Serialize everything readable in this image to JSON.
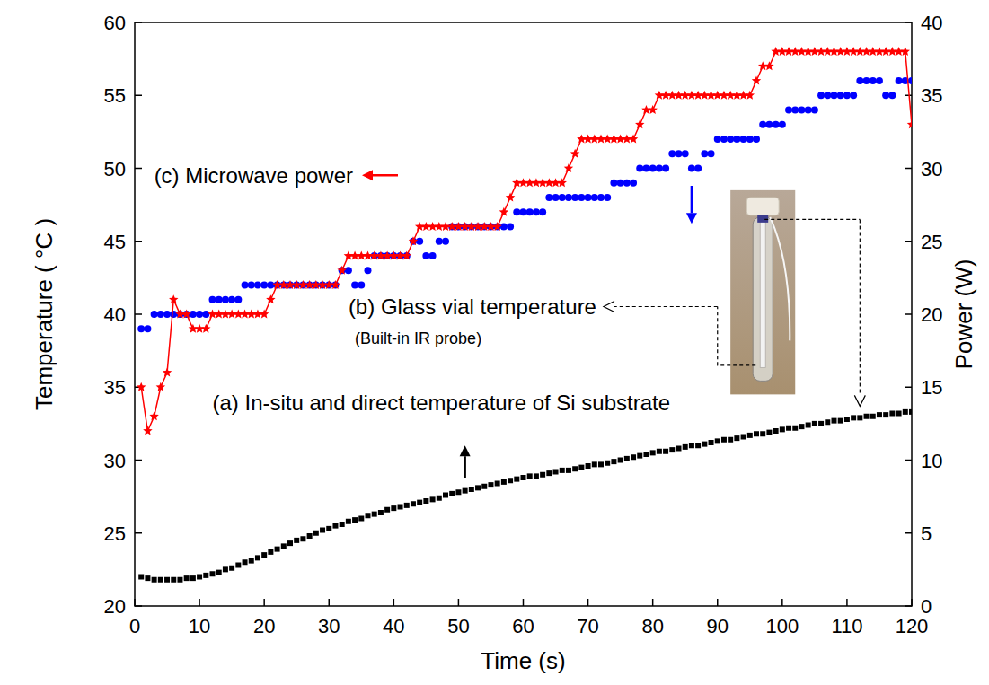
{
  "chart_data": {
    "type": "line",
    "x": [
      1,
      2,
      3,
      4,
      5,
      6,
      7,
      8,
      9,
      10,
      11,
      12,
      13,
      14,
      15,
      16,
      17,
      18,
      19,
      20,
      21,
      22,
      23,
      24,
      25,
      26,
      27,
      28,
      29,
      30,
      31,
      32,
      33,
      34,
      35,
      36,
      37,
      38,
      39,
      40,
      41,
      42,
      43,
      44,
      45,
      46,
      47,
      48,
      49,
      50,
      51,
      52,
      53,
      54,
      55,
      56,
      57,
      58,
      59,
      60,
      61,
      62,
      63,
      64,
      65,
      66,
      67,
      68,
      69,
      70,
      71,
      72,
      73,
      74,
      75,
      76,
      77,
      78,
      79,
      80,
      81,
      82,
      83,
      84,
      85,
      86,
      87,
      88,
      89,
      90,
      91,
      92,
      93,
      94,
      95,
      96,
      97,
      98,
      99,
      100,
      101,
      102,
      103,
      104,
      105,
      106,
      107,
      108,
      109,
      110,
      111,
      112,
      113,
      114,
      115,
      116,
      117,
      118,
      119,
      120
    ],
    "xlim": [
      0,
      120
    ],
    "xticks": [
      0,
      10,
      20,
      30,
      40,
      50,
      60,
      70,
      80,
      90,
      100,
      110,
      120
    ],
    "ylim": [
      20,
      60
    ],
    "yticks": [
      20,
      25,
      30,
      35,
      40,
      45,
      50,
      55,
      60
    ],
    "y2lim": [
      0,
      40
    ],
    "y2ticks": [
      0,
      5,
      10,
      15,
      20,
      25,
      30,
      35,
      40
    ],
    "x_label": "Time (s)",
    "y_label": "Temperature ( °C )",
    "y2_label": "Power (W)",
    "grid": false,
    "series": [
      {
        "name": "(a) In-situ and direct temperature of Si substrate",
        "color": "#000000",
        "marker": "square",
        "line_style": "none",
        "values": [
          22.0,
          21.9,
          21.8,
          21.8,
          21.8,
          21.8,
          21.8,
          21.9,
          21.9,
          22.0,
          22.1,
          22.2,
          22.3,
          22.5,
          22.6,
          22.8,
          23.0,
          23.1,
          23.3,
          23.5,
          23.7,
          23.9,
          24.1,
          24.3,
          24.5,
          24.6,
          24.8,
          25.0,
          25.2,
          25.3,
          25.5,
          25.6,
          25.8,
          25.9,
          26.0,
          26.2,
          26.3,
          26.4,
          26.6,
          26.7,
          26.8,
          26.9,
          27.0,
          27.1,
          27.2,
          27.3,
          27.4,
          27.6,
          27.7,
          27.8,
          27.9,
          28.0,
          28.1,
          28.2,
          28.3,
          28.4,
          28.5,
          28.6,
          28.7,
          28.8,
          28.9,
          28.9,
          29.0,
          29.1,
          29.2,
          29.3,
          29.3,
          29.4,
          29.5,
          29.6,
          29.7,
          29.7,
          29.8,
          29.9,
          30.0,
          30.1,
          30.2,
          30.3,
          30.4,
          30.5,
          30.6,
          30.6,
          30.7,
          30.8,
          30.9,
          31.0,
          31.0,
          31.1,
          31.2,
          31.3,
          31.4,
          31.4,
          31.5,
          31.6,
          31.7,
          31.8,
          31.8,
          31.9,
          32.0,
          32.1,
          32.2,
          32.2,
          32.3,
          32.4,
          32.5,
          32.5,
          32.6,
          32.7,
          32.7,
          32.8,
          32.9,
          32.9,
          33.0,
          33.0,
          33.1,
          33.1,
          33.2,
          33.2,
          33.3,
          33.3
        ]
      },
      {
        "name": "(b) Glass vial temperature",
        "color": "#0000ff",
        "marker": "circle",
        "line_style": "none",
        "values": [
          39,
          39,
          40,
          40,
          40,
          40,
          40,
          40,
          40,
          40,
          40,
          41,
          41,
          41,
          41,
          41,
          42,
          42,
          42,
          42,
          42,
          42,
          42,
          42,
          42,
          42,
          42,
          42,
          42,
          42,
          42,
          43,
          43,
          42,
          42,
          43,
          44,
          44,
          44,
          44,
          44,
          44,
          45,
          45,
          44,
          44,
          45,
          45,
          46,
          46,
          46,
          46,
          46,
          46,
          46,
          46,
          46,
          46,
          47,
          47,
          47,
          47,
          47,
          48,
          48,
          48,
          48,
          48,
          48,
          48,
          48,
          48,
          48,
          49,
          49,
          49,
          49,
          50,
          50,
          50,
          50,
          50,
          51,
          51,
          51,
          50,
          50,
          51,
          51,
          52,
          52,
          52,
          52,
          52,
          52,
          52,
          53,
          53,
          53,
          53,
          54,
          54,
          54,
          54,
          54,
          55,
          55,
          55,
          55,
          55,
          55,
          56,
          56,
          56,
          56,
          55,
          55,
          56,
          56,
          56
        ]
      },
      {
        "name": "(c) Microwave power",
        "color": "#ff0000",
        "marker": "star",
        "line_style": "solid",
        "axis": "y2",
        "values": [
          15,
          12,
          13,
          15,
          16,
          21,
          20,
          20,
          19,
          19,
          19,
          20,
          20,
          20,
          20,
          20,
          20,
          20,
          20,
          20,
          21,
          22,
          22,
          22,
          22,
          22,
          22,
          22,
          22,
          22,
          22,
          23,
          24,
          24,
          24,
          24,
          24,
          24,
          24,
          24,
          24,
          24,
          25,
          26,
          26,
          26,
          26,
          26,
          26,
          26,
          26,
          26,
          26,
          26,
          26,
          26,
          27,
          28,
          29,
          29,
          29,
          29,
          29,
          29,
          29,
          29,
          30,
          31,
          32,
          32,
          32,
          32,
          32,
          32,
          32,
          32,
          32,
          33,
          34,
          34,
          35,
          35,
          35,
          35,
          35,
          35,
          35,
          35,
          35,
          35,
          35,
          35,
          35,
          35,
          35,
          36,
          37,
          37,
          38,
          38,
          38,
          38,
          38,
          38,
          38,
          38,
          38,
          38,
          38,
          38,
          38,
          38,
          38,
          38,
          38,
          38,
          38,
          38,
          38,
          33
        ]
      }
    ],
    "annotations": [
      {
        "text": "(Built-in IR probe)"
      }
    ]
  }
}
